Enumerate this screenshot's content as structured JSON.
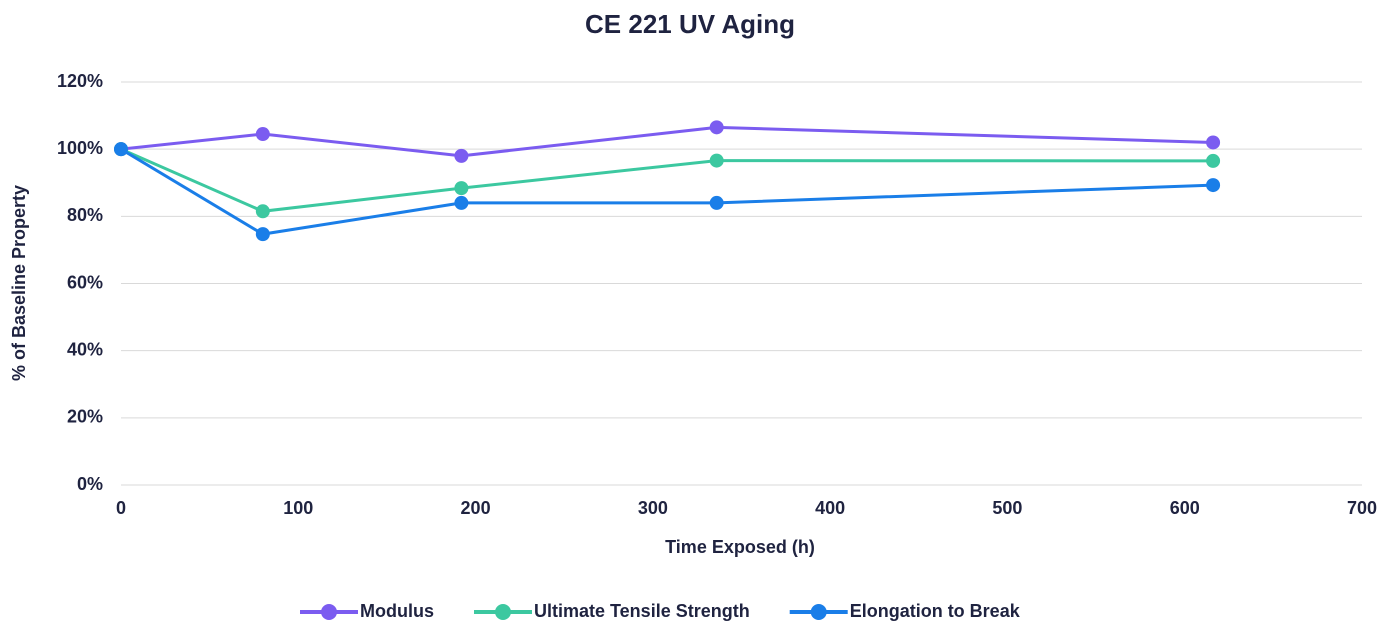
{
  "chart_data": {
    "type": "line",
    "title": "CE 221 UV Aging",
    "x_label": "Time Exposed (h)",
    "y_label": "% of Baseline Property",
    "x": [
      0,
      80,
      192,
      336,
      616
    ],
    "series": [
      {
        "name": "Modulus",
        "color": "#7b5cf0",
        "values": [
          100,
          104.5,
          98,
          106.5,
          102
        ]
      },
      {
        "name": "Ultimate Tensile Strength",
        "color": "#3cc8a0",
        "values": [
          100,
          81.5,
          88.4,
          96.6,
          96.5
        ]
      },
      {
        "name": "Elongation to Break",
        "color": "#1a7ee8",
        "values": [
          100,
          74.7,
          84,
          84,
          89.3
        ]
      }
    ],
    "xlim": [
      0,
      700
    ],
    "xticks": [
      0,
      100,
      200,
      300,
      400,
      500,
      600,
      700
    ],
    "ylim": [
      0,
      120
    ],
    "yticks": [
      {
        "value": 0,
        "label": "0%"
      },
      {
        "value": 20,
        "label": "20%"
      },
      {
        "value": 40,
        "label": "40%"
      },
      {
        "value": 60,
        "label": "60%"
      },
      {
        "value": 80,
        "label": "80%"
      },
      {
        "value": 100,
        "label": "100%"
      },
      {
        "value": 120,
        "label": "120%"
      }
    ],
    "grid": true,
    "legend": "bottom"
  }
}
